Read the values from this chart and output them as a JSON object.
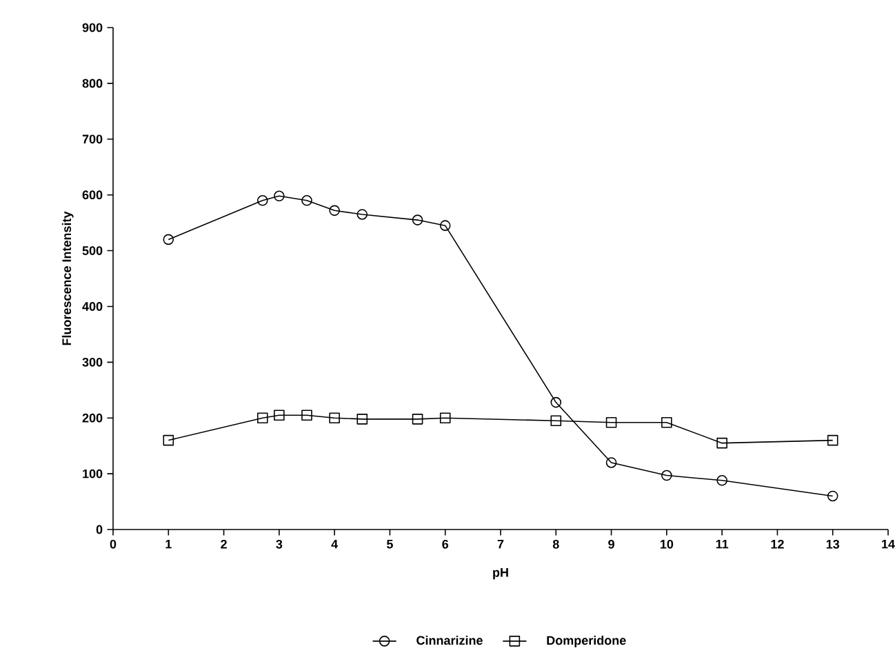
{
  "chart_data": {
    "type": "line",
    "xlabel": "pH",
    "ylabel": "Fluorescence Intensity",
    "xlim": [
      0,
      14
    ],
    "xticks": [
      0,
      1,
      2,
      3,
      4,
      5,
      6,
      7,
      8,
      9,
      10,
      11,
      12,
      13,
      14
    ],
    "ylim": [
      0,
      900
    ],
    "yticks": [
      0,
      100,
      200,
      300,
      400,
      500,
      600,
      700,
      800,
      900
    ],
    "grid": false,
    "legend": "bottom",
    "series": [
      {
        "name": "Cinnarizine",
        "color": "#000000",
        "marker": "circle",
        "x": [
          1,
          2.7,
          3,
          3.5,
          4,
          4.5,
          5.5,
          6,
          8,
          9,
          10,
          11,
          13
        ],
        "values": [
          520,
          590,
          598,
          590,
          572,
          565,
          555,
          545,
          228,
          120,
          97,
          88,
          60
        ]
      },
      {
        "name": "Domperidone",
        "color": "#000000",
        "marker": "square",
        "x": [
          1,
          2.7,
          3,
          3.5,
          4,
          4.5,
          5.5,
          6,
          8,
          9,
          10,
          11,
          13
        ],
        "values": [
          160,
          200,
          205,
          205,
          200,
          198,
          198,
          200,
          195,
          192,
          192,
          155,
          160
        ]
      }
    ]
  }
}
